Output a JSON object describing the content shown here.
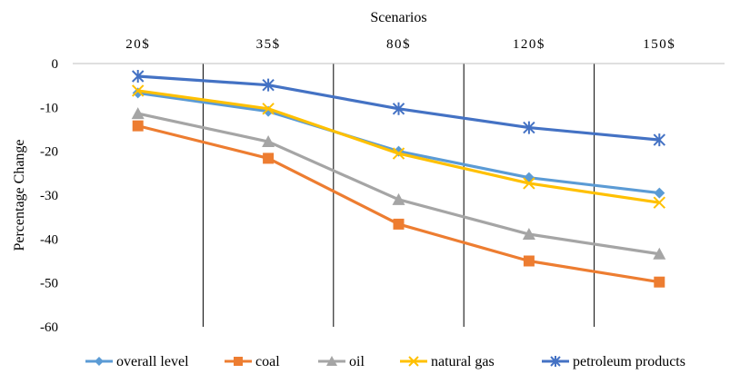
{
  "chart_data": {
    "type": "line",
    "xlabel": "Scenarios",
    "ylabel": "Percentage Change",
    "categories": [
      "20$",
      "35$",
      "80$",
      "120$",
      "150$"
    ],
    "ylim": [
      -60,
      0
    ],
    "yticks": [
      0,
      -10,
      -20,
      -30,
      -40,
      -50,
      -60
    ],
    "x_axis_position": "top",
    "vertical_separators": true,
    "legend_position": "bottom",
    "series": [
      {
        "name": "overall level",
        "values": [
          -6.7,
          -10.9,
          -20.0,
          -26.0,
          -29.5
        ],
        "color": "#5B9BD5",
        "marker": "diamond"
      },
      {
        "name": "coal",
        "values": [
          -14.2,
          -21.6,
          -36.6,
          -45.0,
          -49.8
        ],
        "color": "#ED7D31",
        "marker": "square"
      },
      {
        "name": "oil",
        "values": [
          -11.4,
          -17.8,
          -31.0,
          -38.9,
          -43.4
        ],
        "color": "#A5A5A5",
        "marker": "triangle"
      },
      {
        "name": "natural gas",
        "values": [
          -6.2,
          -10.3,
          -20.5,
          -27.3,
          -31.7
        ],
        "color": "#FFC000",
        "marker": "x"
      },
      {
        "name": "petroleum products",
        "values": [
          -2.9,
          -4.9,
          -10.3,
          -14.6,
          -17.4
        ],
        "color": "#4472C4",
        "marker": "star"
      }
    ]
  }
}
